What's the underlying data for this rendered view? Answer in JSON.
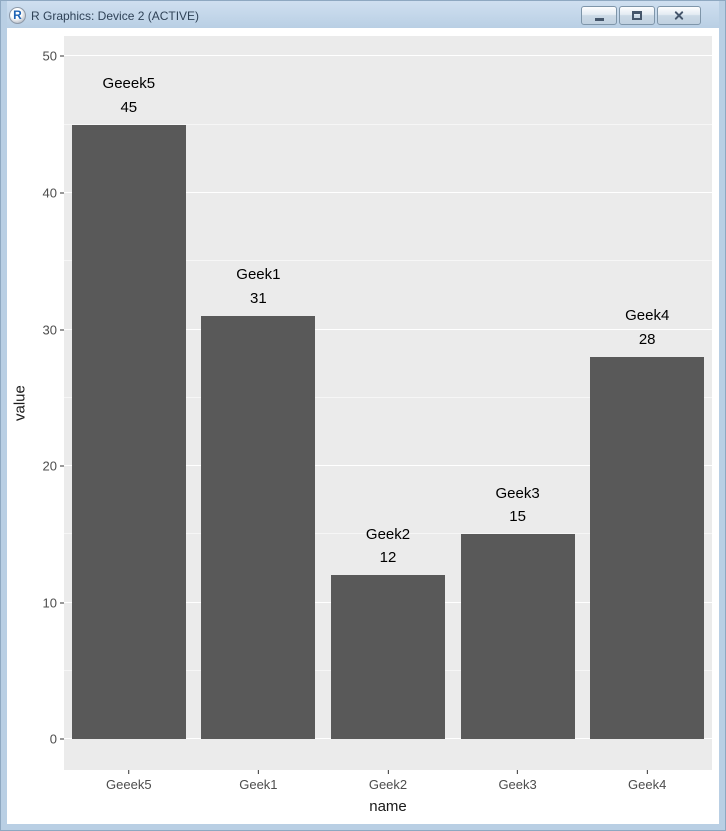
{
  "window": {
    "title": "R Graphics: Device 2 (ACTIVE)",
    "icon_letter": "R"
  },
  "chart_data": {
    "type": "bar",
    "title": "",
    "categories": [
      "Geeek5",
      "Geek1",
      "Geek2",
      "Geek3",
      "Geek4"
    ],
    "values": [
      45,
      31,
      12,
      15,
      28
    ],
    "xlabel": "name",
    "ylabel": "value",
    "ylim": [
      0,
      50
    ],
    "y_domain": [
      -2.25,
      51.5
    ],
    "yticks": [
      0,
      10,
      20,
      30,
      40,
      50
    ],
    "yticks_minor": [
      5,
      15,
      25,
      35,
      45
    ],
    "grid": true,
    "legend": "none",
    "bar_labels": true,
    "bar_color": "#595959",
    "panel_bg": "#EBEBEB",
    "grid_color": "#FFFFFF"
  }
}
